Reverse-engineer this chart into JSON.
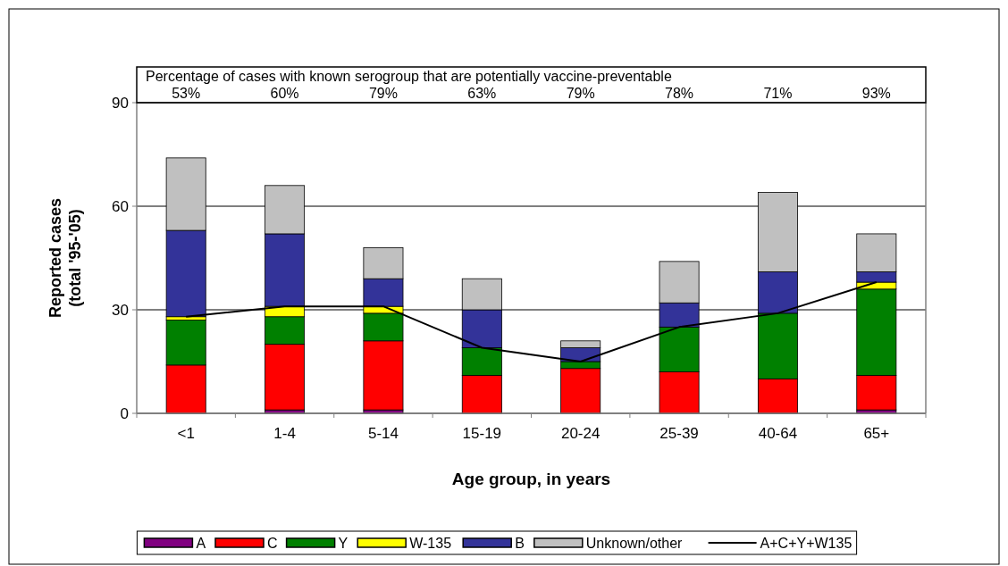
{
  "chart_data": {
    "type": "bar",
    "stacked": true,
    "xlabel": "Age group, in years",
    "ylabel": "Reported cases\n(total '95-'05)",
    "categories": [
      "<1",
      "1-4",
      "5-14",
      "15-19",
      "20-24",
      "25-39",
      "40-64",
      "65+"
    ],
    "series": [
      {
        "name": "A",
        "color": "#800080",
        "values": [
          0,
          1,
          1,
          0,
          0,
          0,
          0,
          1
        ]
      },
      {
        "name": "C",
        "color": "#ff0000",
        "values": [
          14,
          19,
          20,
          11,
          13,
          12,
          10,
          10
        ]
      },
      {
        "name": "Y",
        "color": "#008000",
        "values": [
          13,
          8,
          8,
          8,
          2,
          13,
          19,
          25
        ]
      },
      {
        "name": "W-135",
        "color": "#ffff00",
        "values": [
          1,
          3,
          2,
          0,
          0,
          0,
          0,
          2
        ]
      },
      {
        "name": "B",
        "color": "#333399",
        "values": [
          25,
          21,
          8,
          11,
          4,
          7,
          12,
          3
        ]
      },
      {
        "name": "Unknown/other",
        "color": "#c0c0c0",
        "values": [
          21,
          14,
          9,
          9,
          2,
          12,
          23,
          11
        ]
      },
      {
        "name": "A+C+Y+W135",
        "type": "line",
        "color": "#000000",
        "marker": "none",
        "values": [
          28,
          31,
          31,
          19,
          15,
          25,
          29,
          38
        ]
      }
    ],
    "ylim": [
      0,
      90
    ],
    "yticks": [
      0,
      30,
      60,
      90
    ],
    "grid": "y",
    "legend": "bottom",
    "annotations": [
      "Percentage of cases with known serogroup that are potentially vaccine-preventable",
      "53%",
      "60%",
      "79%",
      "63%",
      "79%",
      "78%",
      "71%",
      "93%"
    ]
  }
}
